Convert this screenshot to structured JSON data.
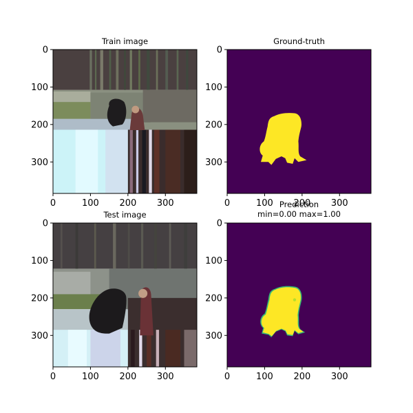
{
  "colors": {
    "mask_background": "#440154",
    "mask_foreground": "#fde725",
    "mask_edge": "#35b779",
    "axes_frame": "#000000"
  },
  "chart_data": [
    {
      "type": "image",
      "title": "Train image",
      "content": "photo-train",
      "xlim": [
        0,
        384
      ],
      "ylim": [
        384,
        0
      ],
      "xticks": [
        "0",
        "100",
        "200",
        "300"
      ],
      "yticks": [
        "0",
        "100",
        "200",
        "300"
      ],
      "xtick_values": [
        0,
        100,
        200,
        300
      ],
      "ytick_values": [
        0,
        100,
        200,
        300
      ]
    },
    {
      "type": "image",
      "title": "Ground-truth",
      "content": "mask-gt",
      "xlim": [
        0,
        384
      ],
      "ylim": [
        384,
        0
      ],
      "xticks": [
        "0",
        "100",
        "200",
        "300"
      ],
      "yticks": [
        "0",
        "100",
        "200",
        "300"
      ],
      "xtick_values": [
        0,
        100,
        200,
        300
      ],
      "ytick_values": [
        0,
        100,
        200,
        300
      ]
    },
    {
      "type": "image",
      "title": "Test image",
      "content": "photo-test",
      "xlim": [
        0,
        384
      ],
      "ylim": [
        384,
        0
      ],
      "xticks": [
        "0",
        "100",
        "200",
        "300"
      ],
      "yticks": [
        "0",
        "100",
        "200",
        "300"
      ],
      "xtick_values": [
        0,
        100,
        200,
        300
      ],
      "ytick_values": [
        0,
        100,
        200,
        300
      ]
    },
    {
      "type": "image",
      "title": "Prediction\nmin=0.00 max=1.00",
      "content": "mask-pred",
      "value_range": {
        "min": 0.0,
        "max": 1.0
      },
      "xlim": [
        0,
        384
      ],
      "ylim": [
        384,
        0
      ],
      "xticks": [
        "0",
        "100",
        "200",
        "300"
      ],
      "yticks": [
        "0",
        "100",
        "200",
        "300"
      ],
      "xtick_values": [
        0,
        100,
        200,
        300
      ],
      "ytick_values": [
        0,
        100,
        200,
        300
      ]
    }
  ]
}
